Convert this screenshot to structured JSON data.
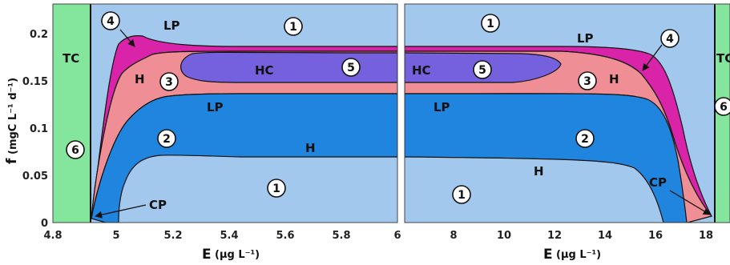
{
  "chart_data": [
    {
      "type": "area",
      "panel": "left",
      "xlabel": "E (µg L⁻¹)",
      "ylabel": "f (mgC L⁻¹ d⁻¹)",
      "xlim": [
        4.8,
        6.0
      ],
      "ylim": [
        0,
        0.23
      ],
      "xticks": [
        "4.8",
        "5",
        "5.2",
        "5.4",
        "5.6",
        "5.8",
        "6"
      ],
      "yticks": [
        "0",
        "0.05",
        "0.1",
        "0.15",
        "0.2"
      ],
      "region_labels": [
        "TC",
        "LP",
        "H",
        "LP",
        "H",
        "CP",
        "HC"
      ],
      "region_numbers": [
        "1",
        "2",
        "3",
        "4",
        "5",
        "6",
        "1"
      ],
      "boundaries": {
        "tc_line_x": 4.9,
        "outer_top": [
          [
            4.9,
            0.005
          ],
          [
            5.0,
            0.185
          ],
          [
            5.08,
            0.197
          ],
          [
            5.2,
            0.188
          ],
          [
            5.6,
            0.186
          ],
          [
            6.0,
            0.185
          ]
        ],
        "magenta_lower": [
          [
            4.9,
            0.005
          ],
          [
            5.05,
            0.16
          ],
          [
            5.15,
            0.178
          ],
          [
            5.3,
            0.182
          ],
          [
            6.0,
            0.182
          ]
        ],
        "pink_lower": [
          [
            4.9,
            0.005
          ],
          [
            5.0,
            0.08
          ],
          [
            5.1,
            0.115
          ],
          [
            5.2,
            0.132
          ],
          [
            5.4,
            0.136
          ],
          [
            6.0,
            0.137
          ]
        ],
        "dark_blue_lower": [
          [
            4.99,
            0
          ],
          [
            5.05,
            0.055
          ],
          [
            5.12,
            0.07
          ],
          [
            5.4,
            0.071
          ],
          [
            6.0,
            0.069
          ]
        ],
        "hc_region": [
          [
            5.23,
            0.17
          ],
          [
            5.35,
            0.178
          ],
          [
            6.0,
            0.178
          ],
          [
            6.0,
            0.148
          ],
          [
            5.35,
            0.148
          ],
          [
            5.24,
            0.16
          ]
        ]
      }
    },
    {
      "type": "area",
      "panel": "right",
      "xlabel": "E (µg L⁻¹)",
      "xlim": [
        6,
        18.5
      ],
      "ylim": [
        0,
        0.23
      ],
      "xticks": [
        "8",
        "10",
        "12",
        "14",
        "16",
        "18"
      ],
      "region_labels": [
        "TC",
        "LP",
        "HC",
        "LP",
        "H",
        "H",
        "CP"
      ],
      "region_numbers": [
        "1",
        "4",
        "5",
        "3",
        "2",
        "1",
        "6"
      ],
      "boundaries": {
        "tc_line_x": 18.4,
        "outer_top": [
          [
            6,
            0.185
          ],
          [
            12,
            0.182
          ],
          [
            14.5,
            0.178
          ],
          [
            16,
            0.165
          ],
          [
            17,
            0.12
          ],
          [
            18.4,
            0.005
          ]
        ],
        "magenta_lower": [
          [
            6,
            0.182
          ],
          [
            12,
            0.178
          ],
          [
            14,
            0.17
          ],
          [
            15.5,
            0.14
          ],
          [
            16.8,
            0.08
          ],
          [
            18.4,
            0.005
          ]
        ],
        "pink_lower": [
          [
            6,
            0.137
          ],
          [
            12,
            0.135
          ],
          [
            14,
            0.132
          ],
          [
            15.5,
            0.12
          ],
          [
            16.5,
            0.08
          ],
          [
            17.2,
            0.03
          ],
          [
            17.4,
            0
          ]
        ],
        "dark_blue_lower": [
          [
            6,
            0.069
          ],
          [
            12,
            0.066
          ],
          [
            14,
            0.064
          ],
          [
            15.2,
            0.05
          ],
          [
            16,
            0.02
          ],
          [
            16.3,
            0
          ]
        ],
        "hc_region": [
          [
            6,
            0.178
          ],
          [
            11,
            0.175
          ],
          [
            12.3,
            0.165
          ],
          [
            11.5,
            0.152
          ],
          [
            6,
            0.148
          ]
        ]
      }
    }
  ],
  "panels": {
    "left": {
      "y_axis_label": "f",
      "y_axis_units": "(mgC L⁻¹ d⁻¹)",
      "x_axis_label": "E",
      "x_axis_units": "(µg L⁻¹)",
      "y_ticks": [
        "0.2",
        "0.15",
        "0.1",
        "0.05",
        "0"
      ],
      "x_ticks": [
        "4.8",
        "5",
        "5.2",
        "5.4",
        "5.6",
        "5.8",
        "6"
      ],
      "labels": {
        "tc": "TC",
        "lp_top": "LP",
        "h_left": "H",
        "hc": "HC",
        "lp_mid": "LP",
        "h_mid": "H",
        "cp": "CP"
      },
      "numbers": {
        "n4": "4",
        "n1_top": "1",
        "n3": "3",
        "n5": "5",
        "n6": "6",
        "n2": "2",
        "n1_bottom": "1"
      }
    },
    "right": {
      "x_axis_label": "E",
      "x_axis_units": "(µg L⁻¹)",
      "x_ticks": [
        "8",
        "10",
        "12",
        "14",
        "16",
        "18"
      ],
      "labels": {
        "tc": "TC",
        "lp_top": "LP",
        "hc": "HC",
        "lp_mid": "LP",
        "h_right": "H",
        "h_mid": "H",
        "cp": "CP"
      },
      "numbers": {
        "n1_top": "1",
        "n4": "4",
        "n5": "5",
        "n3": "3",
        "n6": "6",
        "n2": "2",
        "n1_bottom": "1"
      }
    }
  },
  "colors": {
    "light_blue": "#a3c8ee",
    "dark_blue": "#2085de",
    "pink": "#f08e96",
    "magenta": "#d923a9",
    "purple": "#7561dd",
    "green": "#84e69c"
  }
}
